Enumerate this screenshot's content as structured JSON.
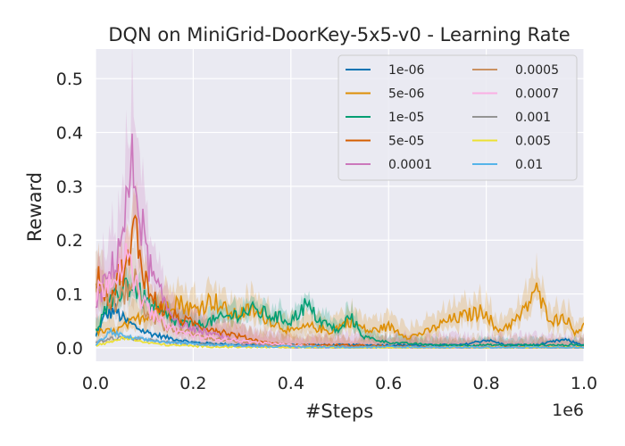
{
  "chart_data": {
    "type": "line",
    "title": "DQN on MiniGrid-DoorKey-5x5-v0 - Learning Rate",
    "xlabel": "#Steps",
    "ylabel": "Reward",
    "x_offset_label": "1e6",
    "xlim": [
      0,
      1.0
    ],
    "ylim": [
      -0.025,
      0.555
    ],
    "x_ticks": [
      0.0,
      0.2,
      0.4,
      0.6,
      0.8,
      1.0
    ],
    "x_tick_labels": [
      "0.0",
      "0.2",
      "0.4",
      "0.6",
      "0.8",
      "1.0"
    ],
    "y_ticks": [
      0.0,
      0.1,
      0.2,
      0.3,
      0.4,
      0.5
    ],
    "y_tick_labels": [
      "0.0",
      "0.1",
      "0.2",
      "0.3",
      "0.4",
      "0.5"
    ],
    "grid": true,
    "legend_position": "top-right",
    "legend_columns": 2,
    "series": [
      {
        "name": "1e-06",
        "color": "#0173b2",
        "points": [
          [
            0,
            0.02
          ],
          [
            0.02,
            0.06
          ],
          [
            0.04,
            0.07
          ],
          [
            0.06,
            0.05
          ],
          [
            0.08,
            0.04
          ],
          [
            0.1,
            0.03
          ],
          [
            0.14,
            0.02
          ],
          [
            0.2,
            0.01
          ],
          [
            0.3,
            0.005
          ],
          [
            0.45,
            0.005
          ],
          [
            0.6,
            0.005
          ],
          [
            0.75,
            0.005
          ],
          [
            0.8,
            0.015
          ],
          [
            0.84,
            0.005
          ],
          [
            0.9,
            0.005
          ],
          [
            0.96,
            0.015
          ],
          [
            1.0,
            0.005
          ]
        ],
        "band": 0.01
      },
      {
        "name": "5e-06",
        "color": "#de8f05",
        "points": [
          [
            0,
            0.03
          ],
          [
            0.04,
            0.03
          ],
          [
            0.08,
            0.05
          ],
          [
            0.12,
            0.07
          ],
          [
            0.16,
            0.09
          ],
          [
            0.2,
            0.07
          ],
          [
            0.24,
            0.09
          ],
          [
            0.28,
            0.06
          ],
          [
            0.32,
            0.07
          ],
          [
            0.36,
            0.05
          ],
          [
            0.4,
            0.03
          ],
          [
            0.44,
            0.04
          ],
          [
            0.48,
            0.03
          ],
          [
            0.52,
            0.05
          ],
          [
            0.56,
            0.03
          ],
          [
            0.6,
            0.04
          ],
          [
            0.64,
            0.02
          ],
          [
            0.68,
            0.03
          ],
          [
            0.72,
            0.05
          ],
          [
            0.76,
            0.06
          ],
          [
            0.8,
            0.07
          ],
          [
            0.82,
            0.03
          ],
          [
            0.84,
            0.04
          ],
          [
            0.86,
            0.05
          ],
          [
            0.88,
            0.07
          ],
          [
            0.9,
            0.11
          ],
          [
            0.92,
            0.07
          ],
          [
            0.94,
            0.05
          ],
          [
            0.96,
            0.06
          ],
          [
            0.98,
            0.03
          ],
          [
            1.0,
            0.04
          ]
        ],
        "band": 0.06
      },
      {
        "name": "1e-05",
        "color": "#029e73",
        "points": [
          [
            0,
            0.03
          ],
          [
            0.02,
            0.07
          ],
          [
            0.04,
            0.09
          ],
          [
            0.06,
            0.12
          ],
          [
            0.08,
            0.11
          ],
          [
            0.1,
            0.09
          ],
          [
            0.12,
            0.07
          ],
          [
            0.16,
            0.05
          ],
          [
            0.2,
            0.04
          ],
          [
            0.24,
            0.05
          ],
          [
            0.28,
            0.06
          ],
          [
            0.32,
            0.07
          ],
          [
            0.36,
            0.06
          ],
          [
            0.4,
            0.05
          ],
          [
            0.43,
            0.08
          ],
          [
            0.46,
            0.05
          ],
          [
            0.5,
            0.03
          ],
          [
            0.52,
            0.06
          ],
          [
            0.55,
            0.02
          ],
          [
            0.6,
            0.01
          ],
          [
            0.7,
            0.005
          ],
          [
            0.8,
            0.005
          ],
          [
            0.9,
            0.005
          ],
          [
            1.0,
            0.005
          ]
        ],
        "band": 0.04
      },
      {
        "name": "5e-05",
        "color": "#d55e00",
        "points": [
          [
            0,
            0.15
          ],
          [
            0.01,
            0.12
          ],
          [
            0.03,
            0.09
          ],
          [
            0.05,
            0.14
          ],
          [
            0.07,
            0.16
          ],
          [
            0.08,
            0.23
          ],
          [
            0.09,
            0.18
          ],
          [
            0.11,
            0.1
          ],
          [
            0.14,
            0.07
          ],
          [
            0.18,
            0.05
          ],
          [
            0.22,
            0.04
          ],
          [
            0.26,
            0.03
          ],
          [
            0.3,
            0.02
          ],
          [
            0.35,
            0.01
          ],
          [
            0.4,
            0.005
          ],
          [
            0.5,
            0.005
          ],
          [
            0.7,
            0.0
          ],
          [
            1.0,
            0.0
          ]
        ],
        "band": 0.05
      },
      {
        "name": "0.0001",
        "color": "#cc78bc",
        "points": [
          [
            0,
            0.08
          ],
          [
            0.02,
            0.12
          ],
          [
            0.04,
            0.16
          ],
          [
            0.06,
            0.24
          ],
          [
            0.075,
            0.33
          ],
          [
            0.09,
            0.27
          ],
          [
            0.1,
            0.19
          ],
          [
            0.12,
            0.12
          ],
          [
            0.15,
            0.07
          ],
          [
            0.18,
            0.04
          ],
          [
            0.22,
            0.03
          ],
          [
            0.26,
            0.02
          ],
          [
            0.3,
            0.01
          ],
          [
            0.35,
            0.005
          ],
          [
            0.4,
            0.0
          ],
          [
            1.0,
            0.0
          ]
        ],
        "band": 0.08
      },
      {
        "name": "0.0005",
        "color": "#ca9161",
        "points": [
          [
            0,
            0.12
          ],
          [
            0.02,
            0.1
          ],
          [
            0.04,
            0.08
          ],
          [
            0.06,
            0.1
          ],
          [
            0.08,
            0.13
          ],
          [
            0.1,
            0.07
          ],
          [
            0.14,
            0.04
          ],
          [
            0.18,
            0.03
          ],
          [
            0.22,
            0.02
          ],
          [
            0.3,
            0.01
          ],
          [
            0.4,
            0.005
          ],
          [
            0.5,
            0.0
          ],
          [
            1.0,
            0.0
          ]
        ],
        "band": 0.07
      },
      {
        "name": "0.0007",
        "color": "#fbafe4",
        "points": [
          [
            0,
            0.1
          ],
          [
            0.02,
            0.12
          ],
          [
            0.04,
            0.14
          ],
          [
            0.06,
            0.17
          ],
          [
            0.08,
            0.12
          ],
          [
            0.1,
            0.08
          ],
          [
            0.13,
            0.05
          ],
          [
            0.17,
            0.03
          ],
          [
            0.22,
            0.02
          ],
          [
            0.28,
            0.015
          ],
          [
            0.33,
            0.01
          ],
          [
            0.4,
            0.005
          ],
          [
            0.5,
            0.0
          ],
          [
            1.0,
            0.0
          ]
        ],
        "band": 0.04
      },
      {
        "name": "0.001",
        "color": "#949494",
        "points": [
          [
            0,
            0.01
          ],
          [
            0.05,
            0.02
          ],
          [
            0.1,
            0.015
          ],
          [
            0.15,
            0.01
          ],
          [
            0.25,
            0.005
          ],
          [
            0.4,
            0.002
          ],
          [
            1.0,
            0.0
          ]
        ],
        "band": 0.01
      },
      {
        "name": "0.005",
        "color": "#ece133",
        "points": [
          [
            0,
            0.005
          ],
          [
            0.03,
            0.01
          ],
          [
            0.06,
            0.02
          ],
          [
            0.1,
            0.01
          ],
          [
            0.15,
            0.005
          ],
          [
            0.25,
            0.002
          ],
          [
            0.4,
            0.0
          ],
          [
            1.0,
            0.0
          ]
        ],
        "band": 0.008
      },
      {
        "name": "0.01",
        "color": "#56b4e9",
        "points": [
          [
            0,
            0.005
          ],
          [
            0.03,
            0.03
          ],
          [
            0.06,
            0.02
          ],
          [
            0.1,
            0.015
          ],
          [
            0.15,
            0.01
          ],
          [
            0.25,
            0.005
          ],
          [
            0.4,
            0.002
          ],
          [
            1.0,
            0.0
          ]
        ],
        "band": 0.01
      }
    ]
  }
}
